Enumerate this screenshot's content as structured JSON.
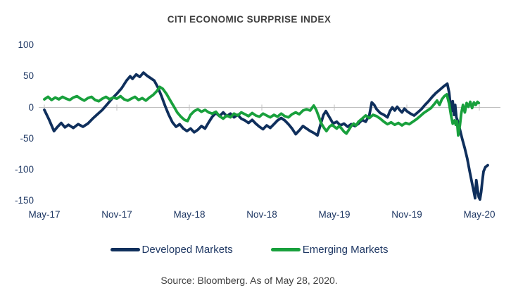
{
  "chart_data": {
    "type": "line",
    "title": "CITI ECONOMIC SURPRISE INDEX",
    "source_note": "Source: Bloomberg. As of May 28, 2020.",
    "xlabel": "",
    "ylabel": "",
    "ylim": [
      -150,
      100
    ],
    "yticks": [
      100,
      50,
      0,
      -50,
      -100,
      -150
    ],
    "xticks": [
      {
        "t": 0,
        "label": "May-17"
      },
      {
        "t": 6,
        "label": "Nov-17"
      },
      {
        "t": 12,
        "label": "May-18"
      },
      {
        "t": 18,
        "label": "Nov-18"
      },
      {
        "t": 24,
        "label": "May-19"
      },
      {
        "t": 30,
        "label": "Nov-19"
      },
      {
        "t": 36,
        "label": "May-20"
      }
    ],
    "x_unit": "months since May-2017",
    "gridlines": "zero-line-only",
    "legend_position": "bottom-center",
    "colors": {
      "developed": "#0f2f5c",
      "emerging": "#18a03c",
      "axis_labels": "#1f3864",
      "title_text": "#404040",
      "source_text": "#404040",
      "gridline": "#bfbfbf"
    },
    "series": [
      {
        "name": "Developed Markets",
        "color": "#0f2f5c",
        "points": [
          [
            0,
            -4
          ],
          [
            0.4,
            -20
          ],
          [
            0.8,
            -38
          ],
          [
            1.1,
            -31
          ],
          [
            1.4,
            -25
          ],
          [
            1.7,
            -32
          ],
          [
            2.0,
            -28
          ],
          [
            2.4,
            -33
          ],
          [
            2.8,
            -27
          ],
          [
            3.2,
            -31
          ],
          [
            3.6,
            -26
          ],
          [
            4.0,
            -18
          ],
          [
            4.4,
            -11
          ],
          [
            4.8,
            -4
          ],
          [
            5.2,
            5
          ],
          [
            5.6,
            14
          ],
          [
            6.0,
            22
          ],
          [
            6.4,
            31
          ],
          [
            6.8,
            43
          ],
          [
            7.1,
            50
          ],
          [
            7.3,
            46
          ],
          [
            7.6,
            53
          ],
          [
            7.9,
            49
          ],
          [
            8.2,
            56
          ],
          [
            8.5,
            51
          ],
          [
            8.8,
            47
          ],
          [
            9.1,
            43
          ],
          [
            9.4,
            32
          ],
          [
            9.7,
            18
          ],
          [
            10.0,
            2
          ],
          [
            10.3,
            -12
          ],
          [
            10.6,
            -24
          ],
          [
            10.9,
            -31
          ],
          [
            11.2,
            -27
          ],
          [
            11.5,
            -34
          ],
          [
            11.8,
            -38
          ],
          [
            12.1,
            -34
          ],
          [
            12.4,
            -40
          ],
          [
            12.7,
            -36
          ],
          [
            13.0,
            -30
          ],
          [
            13.3,
            -34
          ],
          [
            13.6,
            -24
          ],
          [
            13.9,
            -15
          ],
          [
            14.2,
            -9
          ],
          [
            14.5,
            -14
          ],
          [
            14.8,
            -8
          ],
          [
            15.1,
            -14
          ],
          [
            15.4,
            -10
          ],
          [
            15.7,
            -16
          ],
          [
            16.0,
            -12
          ],
          [
            16.3,
            -18
          ],
          [
            16.6,
            -21
          ],
          [
            16.9,
            -25
          ],
          [
            17.2,
            -20
          ],
          [
            17.5,
            -26
          ],
          [
            17.8,
            -31
          ],
          [
            18.1,
            -35
          ],
          [
            18.4,
            -29
          ],
          [
            18.7,
            -33
          ],
          [
            19.0,
            -27
          ],
          [
            19.3,
            -21
          ],
          [
            19.6,
            -17
          ],
          [
            19.9,
            -21
          ],
          [
            20.2,
            -27
          ],
          [
            20.5,
            -34
          ],
          [
            20.8,
            -43
          ],
          [
            21.1,
            -37
          ],
          [
            21.4,
            -30
          ],
          [
            21.7,
            -34
          ],
          [
            22.0,
            -38
          ],
          [
            22.3,
            -41
          ],
          [
            22.6,
            -45
          ],
          [
            22.85,
            -28
          ],
          [
            23.1,
            -12
          ],
          [
            23.3,
            -6
          ],
          [
            23.6,
            -16
          ],
          [
            23.9,
            -26
          ],
          [
            24.2,
            -23
          ],
          [
            24.5,
            -29
          ],
          [
            24.8,
            -26
          ],
          [
            25.1,
            -31
          ],
          [
            25.4,
            -27
          ],
          [
            25.7,
            -30
          ],
          [
            26.0,
            -26
          ],
          [
            26.3,
            -20
          ],
          [
            26.6,
            -23
          ],
          [
            26.9,
            -12
          ],
          [
            27.1,
            8
          ],
          [
            27.3,
            4
          ],
          [
            27.5,
            -3
          ],
          [
            27.8,
            -9
          ],
          [
            28.1,
            -12
          ],
          [
            28.4,
            -16
          ],
          [
            28.6,
            -6
          ],
          [
            28.8,
            0
          ],
          [
            29.0,
            -5
          ],
          [
            29.2,
            1
          ],
          [
            29.4,
            -4
          ],
          [
            29.6,
            -8
          ],
          [
            29.8,
            -2
          ],
          [
            30.0,
            -6
          ],
          [
            30.3,
            -10
          ],
          [
            30.6,
            -13
          ],
          [
            30.9,
            -8
          ],
          [
            31.2,
            -3
          ],
          [
            31.5,
            4
          ],
          [
            31.8,
            10
          ],
          [
            32.1,
            17
          ],
          [
            32.4,
            23
          ],
          [
            32.7,
            28
          ],
          [
            33.0,
            33
          ],
          [
            33.2,
            36
          ],
          [
            33.35,
            38
          ],
          [
            33.5,
            24
          ],
          [
            33.6,
            6
          ],
          [
            33.7,
            -6
          ],
          [
            33.8,
            10
          ],
          [
            33.9,
            -12
          ],
          [
            34.0,
            4
          ],
          [
            34.1,
            -16
          ],
          [
            34.25,
            -24
          ],
          [
            34.4,
            -36
          ],
          [
            34.6,
            -52
          ],
          [
            34.8,
            -66
          ],
          [
            35.0,
            -82
          ],
          [
            35.2,
            -103
          ],
          [
            35.4,
            -122
          ],
          [
            35.55,
            -136
          ],
          [
            35.65,
            -146
          ],
          [
            35.75,
            -117
          ],
          [
            35.85,
            -131
          ],
          [
            35.95,
            -144
          ],
          [
            36.05,
            -148
          ],
          [
            36.15,
            -136
          ],
          [
            36.25,
            -118
          ],
          [
            36.35,
            -103
          ],
          [
            36.5,
            -96
          ],
          [
            36.7,
            -93
          ]
        ]
      },
      {
        "name": "Emerging Markets",
        "color": "#18a03c",
        "points": [
          [
            0,
            13
          ],
          [
            0.3,
            17
          ],
          [
            0.6,
            12
          ],
          [
            0.9,
            16
          ],
          [
            1.2,
            13
          ],
          [
            1.5,
            17
          ],
          [
            1.8,
            14
          ],
          [
            2.1,
            12
          ],
          [
            2.4,
            16
          ],
          [
            2.7,
            18
          ],
          [
            3.0,
            14
          ],
          [
            3.3,
            11
          ],
          [
            3.6,
            15
          ],
          [
            3.9,
            17
          ],
          [
            4.2,
            12
          ],
          [
            4.5,
            10
          ],
          [
            4.8,
            14
          ],
          [
            5.1,
            17
          ],
          [
            5.4,
            13
          ],
          [
            5.7,
            16
          ],
          [
            6.0,
            14
          ],
          [
            6.3,
            18
          ],
          [
            6.6,
            13
          ],
          [
            6.9,
            11
          ],
          [
            7.2,
            14
          ],
          [
            7.5,
            17
          ],
          [
            7.8,
            12
          ],
          [
            8.1,
            15
          ],
          [
            8.4,
            11
          ],
          [
            8.7,
            16
          ],
          [
            9.0,
            20
          ],
          [
            9.3,
            26
          ],
          [
            9.55,
            33
          ],
          [
            9.8,
            30
          ],
          [
            10.1,
            22
          ],
          [
            10.4,
            12
          ],
          [
            10.7,
            2
          ],
          [
            11.0,
            -8
          ],
          [
            11.3,
            -15
          ],
          [
            11.6,
            -20
          ],
          [
            11.85,
            -22
          ],
          [
            12.1,
            -12
          ],
          [
            12.4,
            -6
          ],
          [
            12.7,
            -3
          ],
          [
            13.0,
            -7
          ],
          [
            13.3,
            -4
          ],
          [
            13.6,
            -8
          ],
          [
            13.9,
            -10
          ],
          [
            14.2,
            -7
          ],
          [
            14.5,
            -14
          ],
          [
            14.8,
            -18
          ],
          [
            15.1,
            -13
          ],
          [
            15.4,
            -16
          ],
          [
            15.7,
            -10
          ],
          [
            16.0,
            -13
          ],
          [
            16.3,
            -8
          ],
          [
            16.6,
            -11
          ],
          [
            16.9,
            -14
          ],
          [
            17.2,
            -9
          ],
          [
            17.5,
            -13
          ],
          [
            17.8,
            -15
          ],
          [
            18.1,
            -10
          ],
          [
            18.4,
            -13
          ],
          [
            18.7,
            -16
          ],
          [
            19.0,
            -12
          ],
          [
            19.3,
            -15
          ],
          [
            19.6,
            -10
          ],
          [
            19.9,
            -14
          ],
          [
            20.2,
            -16
          ],
          [
            20.5,
            -11
          ],
          [
            20.8,
            -8
          ],
          [
            21.1,
            -11
          ],
          [
            21.4,
            -5
          ],
          [
            21.7,
            -3
          ],
          [
            22.0,
            -5
          ],
          [
            22.3,
            3
          ],
          [
            22.5,
            -4
          ],
          [
            22.7,
            -14
          ],
          [
            22.9,
            -25
          ],
          [
            23.15,
            -33
          ],
          [
            23.35,
            -38
          ],
          [
            23.6,
            -31
          ],
          [
            23.8,
            -28
          ],
          [
            24.0,
            -31
          ],
          [
            24.2,
            -34
          ],
          [
            24.4,
            -30
          ],
          [
            24.6,
            -34
          ],
          [
            24.8,
            -39
          ],
          [
            25.0,
            -42
          ],
          [
            25.2,
            -36
          ],
          [
            25.4,
            -30
          ],
          [
            25.6,
            -26
          ],
          [
            25.8,
            -29
          ],
          [
            26.0,
            -23
          ],
          [
            26.3,
            -18
          ],
          [
            26.6,
            -13
          ],
          [
            26.9,
            -17
          ],
          [
            27.2,
            -12
          ],
          [
            27.5,
            -14
          ],
          [
            27.8,
            -18
          ],
          [
            28.1,
            -23
          ],
          [
            28.4,
            -27
          ],
          [
            28.7,
            -24
          ],
          [
            29.0,
            -28
          ],
          [
            29.3,
            -25
          ],
          [
            29.6,
            -29
          ],
          [
            29.9,
            -25
          ],
          [
            30.2,
            -27
          ],
          [
            30.5,
            -23
          ],
          [
            30.8,
            -19
          ],
          [
            31.1,
            -14
          ],
          [
            31.4,
            -9
          ],
          [
            31.7,
            -5
          ],
          [
            32.0,
            -1
          ],
          [
            32.3,
            6
          ],
          [
            32.5,
            11
          ],
          [
            32.7,
            4
          ],
          [
            32.9,
            13
          ],
          [
            33.1,
            18
          ],
          [
            33.3,
            21
          ],
          [
            33.5,
            6
          ],
          [
            33.65,
            -12
          ],
          [
            33.8,
            -26
          ],
          [
            33.95,
            -21
          ],
          [
            34.05,
            -28
          ],
          [
            34.15,
            -22
          ],
          [
            34.25,
            -45
          ],
          [
            34.4,
            -28
          ],
          [
            34.5,
            -10
          ],
          [
            34.65,
            4
          ],
          [
            34.8,
            -8
          ],
          [
            34.95,
            7
          ],
          [
            35.1,
            1
          ],
          [
            35.25,
            9
          ],
          [
            35.4,
            -1
          ],
          [
            35.55,
            8
          ],
          [
            35.7,
            4
          ],
          [
            35.85,
            9
          ],
          [
            35.95,
            7
          ]
        ]
      }
    ]
  }
}
